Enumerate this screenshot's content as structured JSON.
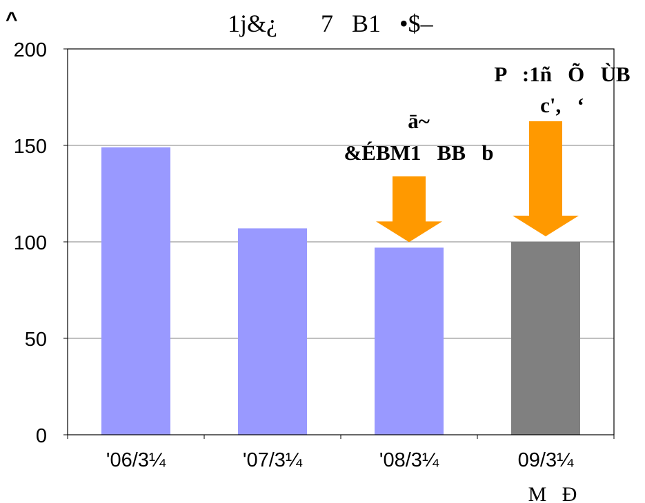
{
  "chart_data": {
    "type": "bar",
    "corner_mark": "^",
    "title": "1j&¿       7   B1   •$–",
    "categories": [
      "'06/3¼",
      "'07/3¼",
      "'08/3¼",
      "09/3¼"
    ],
    "category_sublabels": [
      "",
      "",
      "",
      "M   Ð"
    ],
    "values": [
      149,
      107,
      97,
      100
    ],
    "bar_colors": [
      "#9999ff",
      "#9999ff",
      "#9999ff",
      "#808080"
    ],
    "ylim": [
      0,
      200
    ],
    "yticks": [
      0,
      50,
      100,
      150,
      200
    ],
    "grid": true,
    "annotations": [
      {
        "lines": [
          "ā~",
          "&ÉBM1   BB   b"
        ],
        "bar": 2
      },
      {
        "lines": [
          "P   :1ñ   Õ   ÙB",
          "c',   ‘"
        ],
        "bar": 3
      }
    ],
    "arrow_color": "#ff9900"
  }
}
